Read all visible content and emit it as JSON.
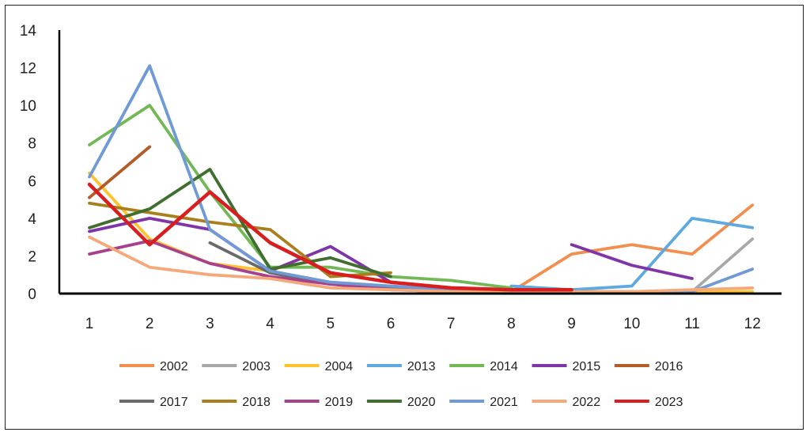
{
  "chart_data": {
    "type": "line",
    "title": "",
    "xlabel": "",
    "ylabel": "",
    "x": [
      "1",
      "2",
      "3",
      "4",
      "5",
      "6",
      "7",
      "8",
      "9",
      "10",
      "11",
      "12"
    ],
    "ylim": [
      0,
      14
    ],
    "yticks": [
      "0",
      "2",
      "4",
      "6",
      "8",
      "10",
      "12",
      "14"
    ],
    "grid": false,
    "legend_position": "bottom",
    "series": [
      {
        "name": "2002",
        "color": "#F28E4E",
        "values": [
          null,
          null,
          null,
          null,
          null,
          null,
          null,
          0.1,
          2.1,
          2.6,
          2.1,
          4.7
        ]
      },
      {
        "name": "2003",
        "color": "#A8A8A8",
        "values": [
          null,
          null,
          null,
          null,
          null,
          null,
          null,
          null,
          null,
          0.1,
          0.1,
          2.9
        ]
      },
      {
        "name": "2004",
        "color": "#FFC12E",
        "values": [
          6.4,
          2.9,
          1.6,
          1.2,
          0.6,
          0.3,
          0.2,
          0.1,
          0.1,
          0.1,
          0.1,
          0.1
        ]
      },
      {
        "name": "2013",
        "color": "#5DA9E0",
        "values": [
          null,
          null,
          null,
          null,
          null,
          null,
          null,
          0.4,
          0.2,
          0.4,
          4.0,
          3.5
        ]
      },
      {
        "name": "2014",
        "color": "#72B857",
        "values": [
          7.9,
          10.0,
          5.4,
          1.4,
          1.4,
          0.9,
          0.7,
          0.3,
          null,
          null,
          null,
          null
        ]
      },
      {
        "name": "2015",
        "color": "#7F35A8",
        "values": [
          3.3,
          4.0,
          3.4,
          1.2,
          2.5,
          0.6,
          null,
          null,
          2.6,
          1.5,
          0.8,
          null
        ]
      },
      {
        "name": "2016",
        "color": "#B35C27",
        "values": [
          5.1,
          7.8,
          null,
          null,
          null,
          null,
          null,
          null,
          null,
          null,
          null,
          null
        ]
      },
      {
        "name": "2017",
        "color": "#6A6A6A",
        "values": [
          null,
          null,
          2.7,
          1.1,
          0.5,
          0.3,
          0.2,
          null,
          null,
          null,
          null,
          null
        ]
      },
      {
        "name": "2018",
        "color": "#A87F1C",
        "values": [
          4.8,
          4.3,
          3.8,
          3.4,
          0.9,
          1.1,
          null,
          null,
          null,
          null,
          null,
          null
        ]
      },
      {
        "name": "2019",
        "color": "#A8418C",
        "values": [
          2.1,
          2.8,
          1.6,
          0.9,
          0.5,
          0.2,
          0.1,
          null,
          null,
          null,
          null,
          null
        ]
      },
      {
        "name": "2020",
        "color": "#3F6E2E",
        "values": [
          3.5,
          4.5,
          6.6,
          1.3,
          1.9,
          0.9,
          null,
          null,
          null,
          null,
          null,
          null
        ]
      },
      {
        "name": "2021",
        "color": "#6F9AD6",
        "values": [
          6.2,
          12.1,
          3.4,
          1.2,
          0.6,
          0.4,
          0.2,
          0.1,
          0.1,
          0.1,
          0.1,
          1.3
        ]
      },
      {
        "name": "2022",
        "color": "#F5A97A",
        "values": [
          3.0,
          1.4,
          1.0,
          0.8,
          0.3,
          0.2,
          0.1,
          0.1,
          0.1,
          0.1,
          0.2,
          0.3
        ]
      },
      {
        "name": "2023",
        "color": "#D81E1E",
        "values": [
          5.8,
          2.6,
          5.4,
          2.7,
          1.1,
          0.6,
          0.3,
          0.2,
          0.2,
          null,
          null,
          null
        ]
      }
    ]
  }
}
